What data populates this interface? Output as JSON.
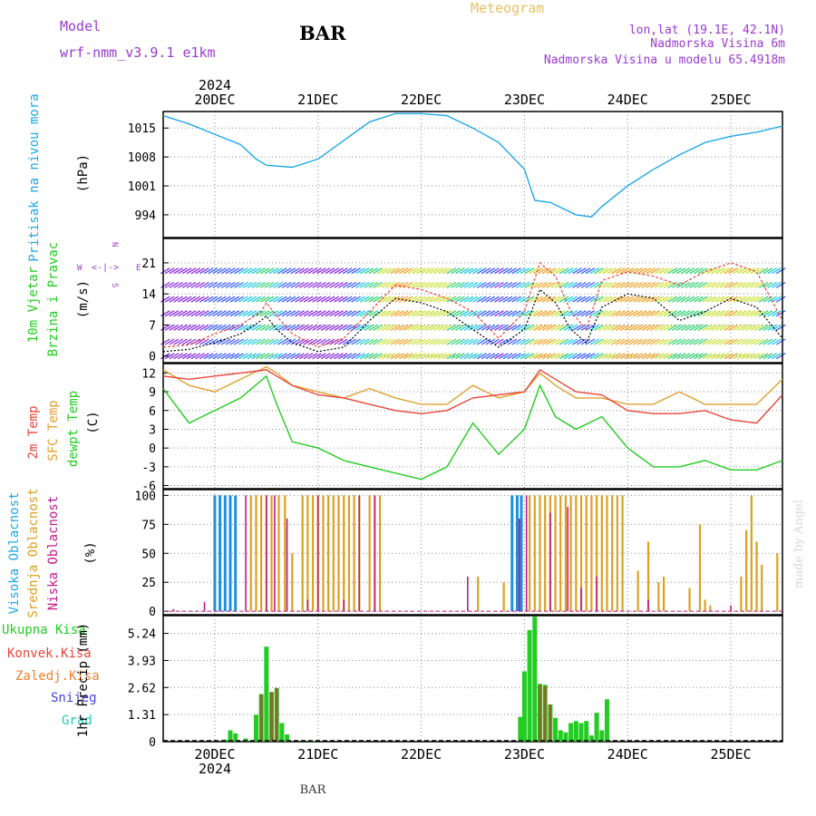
{
  "header": {
    "model_label": "Model",
    "model_name": "wrf-nmm_v3.9.1  e1km",
    "station": "BAR",
    "title": "Meteogram",
    "location": "lon,lat (19.1E, 42.1N)",
    "elevation": "Nadmorska Visina 6m",
    "model_elevation": "Nadmorska Visina u modelu 65.4918m"
  },
  "footer": {
    "station": "BAR",
    "watermark": "made by Angel"
  },
  "colors": {
    "pressure": "#1fa8e6",
    "temp2m": "#e8463c",
    "sfc": "#e0a030",
    "dewpt": "#22cc22",
    "high_cloud": "#1e90dd",
    "mid_cloud": "#dda020",
    "low_cloud": "#c01a8c",
    "total_precip": "#22cc22",
    "conv_precip": "#e8463c",
    "frz_precip": "#f08030",
    "snow": "#4444dd",
    "hail": "#20c8b8",
    "label_purple": "#9a3ad0",
    "title_gold": "#e8c060"
  },
  "chart_data": [
    {
      "type": "line",
      "name": "pressure",
      "label": "Pritisak na nivou mora",
      "ylabel": "(hPa)",
      "ylim": [
        988.5,
        1019
      ],
      "yticks": [
        994,
        1001,
        1008,
        1015
      ],
      "x_range": [
        -0.5,
        5.5
      ],
      "x_top_year": "2024",
      "x_bottom_year": "2024",
      "day_labels": [
        "20DEC",
        "21DEC",
        "22DEC",
        "23DEC",
        "24DEC",
        "25DEC"
      ],
      "x": [
        -0.5,
        -0.25,
        0,
        0.25,
        0.4,
        0.5,
        0.75,
        1,
        1.25,
        1.5,
        1.75,
        2,
        2.25,
        2.5,
        2.75,
        3,
        3.1,
        3.25,
        3.5,
        3.65,
        3.75,
        4,
        4.25,
        4.5,
        4.75,
        5,
        5.25,
        5.5
      ],
      "series": [
        {
          "name": "pressure",
          "values": [
            1018,
            1016,
            1013.5,
            1011,
            1007.5,
            1006,
            1005.5,
            1007.5,
            1012,
            1016.5,
            1018.5,
            1018.5,
            1018,
            1015,
            1011.5,
            1005,
            997.5,
            997,
            994,
            993.5,
            996,
            1001,
            1005,
            1008.5,
            1011.5,
            1013,
            1014,
            1015.5
          ]
        }
      ]
    },
    {
      "type": "line",
      "name": "wind",
      "label_line1": "10m Vjetar",
      "label_line2": "Brzina i Pravac",
      "ylabel": "(m/s)",
      "compass": {
        "north": "N",
        "east": "E",
        "south": "S",
        "west": "W"
      },
      "ylim": [
        -1.5,
        26.5
      ],
      "yticks": [
        0,
        7,
        14,
        21
      ],
      "x": [
        -0.5,
        -0.25,
        0,
        0.25,
        0.45,
        0.5,
        0.6,
        0.75,
        1,
        1.25,
        1.5,
        1.75,
        2,
        2.25,
        2.5,
        2.75,
        3,
        3.15,
        3.3,
        3.45,
        3.6,
        3.75,
        4,
        4.25,
        4.5,
        4.75,
        5,
        5.25,
        5.5
      ],
      "series": [
        {
          "name": "wind speed",
          "values": [
            1,
            1.5,
            3,
            5,
            8,
            9,
            6,
            3,
            1,
            2,
            8,
            13,
            12,
            10,
            6,
            2,
            6,
            15,
            12,
            6,
            3,
            11,
            14,
            13,
            8,
            10,
            13,
            11,
            4
          ]
        },
        {
          "name": "gust",
          "values": [
            2,
            2.5,
            5,
            7,
            10,
            12,
            9,
            5,
            2,
            4,
            10,
            16,
            15,
            13,
            10,
            4,
            10,
            21,
            18,
            10,
            6,
            17,
            19,
            18,
            16,
            19,
            21,
            19,
            8
          ]
        }
      ]
    },
    {
      "type": "line",
      "name": "temperature",
      "label_2m": "2m Temp",
      "label_sfc": "SFC Temp",
      "label_dewpt": "dewpt Temp",
      "ylabel": "(C)",
      "ylim": [
        -6.5,
        13.5
      ],
      "yticks": [
        -6,
        -3,
        0,
        3,
        6,
        9,
        12
      ],
      "x": [
        -0.5,
        -0.25,
        0,
        0.25,
        0.5,
        0.6,
        0.75,
        1,
        1.25,
        1.5,
        1.75,
        2,
        2.25,
        2.5,
        2.75,
        3,
        3.15,
        3.3,
        3.5,
        3.75,
        4,
        4.25,
        4.5,
        4.75,
        5,
        5.25,
        5.5
      ],
      "series": [
        {
          "name": "2m Temp",
          "values": [
            11.5,
            11,
            11.5,
            12,
            12.5,
            11.5,
            10,
            8.5,
            8,
            7,
            6,
            5.5,
            6,
            8,
            8.5,
            9,
            12.5,
            11,
            9,
            8.5,
            6,
            5.5,
            5.5,
            6,
            4.5,
            4,
            8.5
          ]
        },
        {
          "name": "SFC Temp",
          "values": [
            12.5,
            10,
            9,
            11,
            13,
            12,
            10,
            9,
            8,
            9.5,
            8,
            7,
            7,
            10,
            8,
            9,
            12,
            10,
            8,
            8,
            7,
            7,
            9,
            7,
            7,
            7,
            11
          ]
        },
        {
          "name": "dewpt Temp",
          "values": [
            9.5,
            4,
            6,
            8,
            11.5,
            7,
            1,
            0,
            -2,
            -3,
            -4,
            -5,
            -3,
            4,
            -1,
            3,
            10,
            5,
            3,
            5,
            0,
            -3,
            -3,
            -2,
            -3.5,
            -3.5,
            -2
          ]
        }
      ]
    },
    {
      "type": "bar",
      "name": "cloud",
      "label_high": "Visoka Oblacnost",
      "label_mid": "Srednja Oblacnost",
      "label_low": "Niska Oblacnost",
      "ylabel": "(%)",
      "ylim": [
        -3,
        105
      ],
      "yticks": [
        0,
        25,
        50,
        75,
        100
      ],
      "series": [
        {
          "name": "Visoka Oblacnost",
          "x": [
            0,
            0.05,
            0.1,
            0.15,
            0.2,
            2.88,
            2.93,
            2.97
          ],
          "values": [
            100,
            100,
            100,
            100,
            100,
            100,
            100,
            100
          ]
        },
        {
          "name": "Srednja Oblacnost",
          "x": [
            0.35,
            0.4,
            0.45,
            0.5,
            0.55,
            0.62,
            0.68,
            0.75,
            0.85,
            0.9,
            0.95,
            1.0,
            1.05,
            1.1,
            1.15,
            1.2,
            1.25,
            1.3,
            1.35,
            1.4,
            1.5,
            1.55,
            1.6,
            2.55,
            2.8,
            3.05,
            3.1,
            3.15,
            3.2,
            3.25,
            3.3,
            3.35,
            3.4,
            3.45,
            3.5,
            3.55,
            3.6,
            3.65,
            3.7,
            3.75,
            3.8,
            3.85,
            3.9,
            3.95,
            4.1,
            4.2,
            4.3,
            4.35,
            4.6,
            4.7,
            4.75,
            4.8,
            5.1,
            5.15,
            5.2,
            5.25,
            5.3,
            5.45
          ],
          "values": [
            100,
            100,
            100,
            100,
            100,
            100,
            100,
            50,
            100,
            100,
            100,
            100,
            100,
            100,
            100,
            100,
            100,
            100,
            100,
            100,
            100,
            100,
            100,
            30,
            25,
            100,
            100,
            100,
            100,
            100,
            100,
            100,
            100,
            100,
            100,
            100,
            100,
            100,
            100,
            100,
            100,
            100,
            100,
            100,
            35,
            60,
            25,
            30,
            20,
            75,
            10,
            5,
            30,
            70,
            100,
            60,
            40,
            50
          ]
        },
        {
          "name": "Niska Oblacnost",
          "x": [
            -0.4,
            -0.1,
            0.3,
            0.5,
            0.58,
            0.7,
            0.9,
            1.0,
            1.25,
            1.4,
            1.55,
            2.45,
            2.95,
            3.02,
            3.25,
            3.42,
            3.55,
            3.7,
            4.2,
            5.0
          ],
          "values": [
            2,
            8,
            100,
            100,
            100,
            80,
            10,
            100,
            10,
            100,
            100,
            30,
            80,
            100,
            85,
            90,
            20,
            30,
            10,
            5
          ]
        }
      ]
    },
    {
      "type": "bar",
      "name": "precipitation",
      "label_total": "Ukupna Kisa",
      "label_conv": "Konvek.Kisa",
      "label_frz": "Zaledj.Kisa",
      "label_snow": "Snijeg",
      "label_hail": "Grad",
      "ylabel": "1hr Precip (mm)",
      "ylim": [
        0,
        6.1
      ],
      "yticks": [
        0,
        1.31,
        2.62,
        3.93,
        5.24
      ],
      "series": [
        {
          "name": "Ukupna Kisa",
          "x": [
            0.1,
            0.15,
            0.2,
            0.3,
            0.4,
            0.45,
            0.5,
            0.55,
            0.6,
            0.65,
            0.7,
            0.95,
            2.96,
            3.0,
            3.05,
            3.1,
            3.15,
            3.2,
            3.25,
            3.3,
            3.35,
            3.4,
            3.45,
            3.5,
            3.55,
            3.6,
            3.65,
            3.7,
            3.75,
            3.8
          ],
          "values": [
            0.1,
            0.55,
            0.4,
            0.15,
            1.3,
            2.3,
            4.6,
            2.4,
            2.6,
            0.9,
            0.35,
            0.05,
            1.2,
            3.4,
            5.4,
            6.05,
            2.8,
            2.75,
            1.8,
            1.15,
            0.55,
            0.45,
            0.9,
            1.0,
            0.9,
            1.0,
            0.3,
            1.4,
            0.55,
            2.05
          ]
        },
        {
          "name": "Konvek.Kisa",
          "x": [
            0.45,
            0.55,
            0.6,
            3.15,
            3.2,
            3.25
          ],
          "values": [
            2.3,
            2.4,
            2.6,
            2.75,
            2.7,
            1.8
          ]
        }
      ]
    }
  ]
}
